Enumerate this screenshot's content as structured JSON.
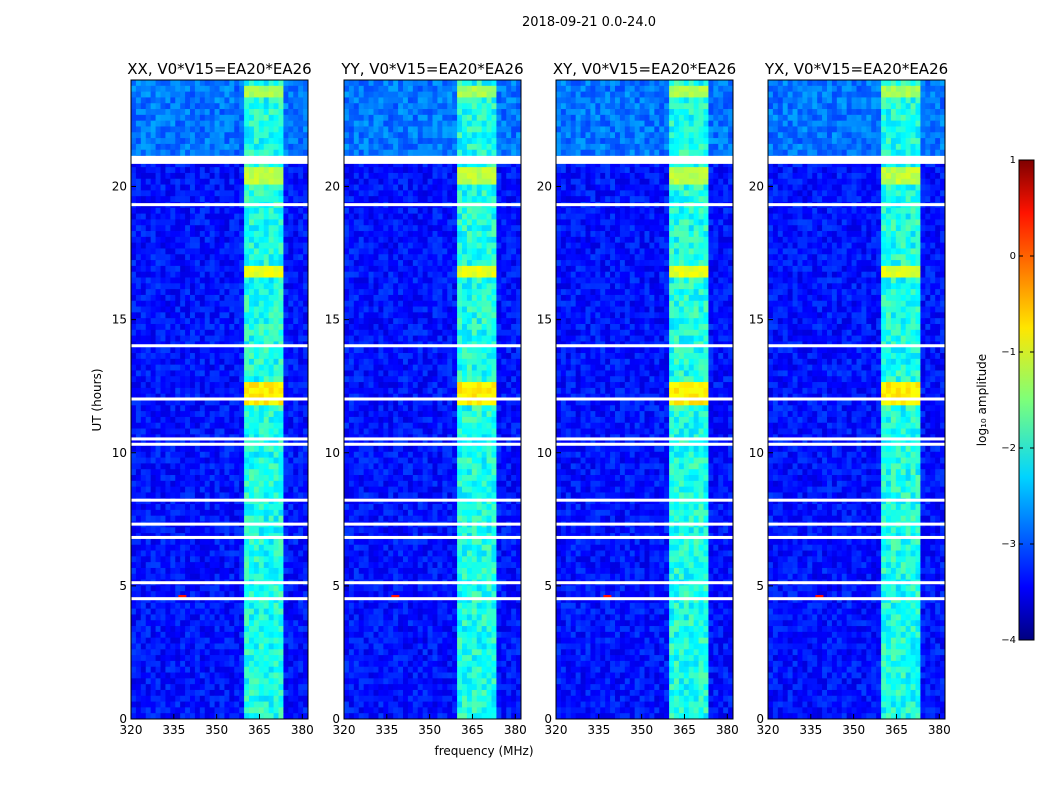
{
  "figure_title": "2018-09-21 0.0-24.0",
  "chart_data": {
    "type": "heatmap",
    "title": "2018-09-21 0.0-24.0",
    "xlabel": "frequency (MHz)",
    "ylabel": "UT (hours)",
    "xlim": [
      320,
      382
    ],
    "ylim": [
      0,
      24
    ],
    "xticks": [
      320,
      335,
      350,
      365,
      380
    ],
    "yticks": [
      0,
      5,
      10,
      15,
      20
    ],
    "colorbar": {
      "label": "log₁₀ amplitude",
      "range": [
        -4,
        1
      ],
      "ticks": [
        1,
        0,
        -1,
        -2,
        -3,
        -4
      ],
      "tick_labels": [
        "1",
        "0",
        "−1",
        "−2",
        "−3",
        "−4"
      ],
      "colormap": "jet"
    },
    "panels": [
      {
        "title": "XX, V0*V15=EA20*EA26",
        "polarization": "XX"
      },
      {
        "title": "YY, V0*V15=EA20*EA26",
        "polarization": "YY"
      },
      {
        "title": "XY, V0*V15=EA20*EA26",
        "polarization": "XY"
      },
      {
        "title": "YX, V0*V15=EA20*EA26",
        "polarization": "YX"
      }
    ],
    "background_level": -3.3,
    "rfi_band_mhz": [
      360,
      374
    ],
    "rfi_band_level": -2.0,
    "rfi_bursts": [
      {
        "ut_range": [
          12.0,
          12.6
        ],
        "level": -0.8
      },
      {
        "ut_range": [
          16.6,
          16.9
        ],
        "level": -1.0
      },
      {
        "ut_range": [
          23.5,
          23.7
        ],
        "level": -1.3
      },
      {
        "ut_range": [
          20.2,
          20.6
        ],
        "level": -1.2
      }
    ],
    "bright_spot": {
      "freq_mhz": 338,
      "ut": 4.6,
      "level": 0.3
    },
    "flagged_ut_hours": [
      21.0,
      14.0,
      10.3,
      8.2,
      6.8,
      5.1,
      4.5,
      19.3,
      12.0,
      10.5,
      7.3
    ]
  }
}
